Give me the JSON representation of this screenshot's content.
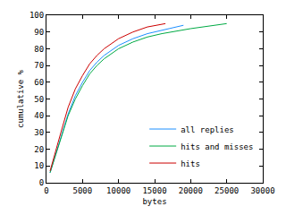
{
  "chart_data": {
    "type": "line",
    "x_label": "bytes",
    "y_label": "cumulative %",
    "xlim": [
      0,
      30000
    ],
    "xticks": [
      0,
      5000,
      10000,
      15000,
      20000,
      25000,
      30000
    ],
    "ylim": [
      0,
      100
    ],
    "yticks": [
      0,
      10,
      20,
      30,
      40,
      50,
      60,
      70,
      80,
      90,
      100
    ],
    "grid": false,
    "legend": "bottom right",
    "series": [
      {
        "name": "all replies",
        "color": "#1e90ff",
        "x": [
          500,
          1000,
          2000,
          3000,
          4000,
          5000,
          6000,
          7000,
          8000,
          10000,
          12000,
          14000,
          17000,
          19000
        ],
        "values": [
          6,
          13,
          28,
          41,
          52,
          60,
          67,
          72,
          76,
          82,
          86,
          89,
          92,
          94
        ]
      },
      {
        "name": "hits and misses",
        "color": "#00aa44",
        "x": [
          500,
          1000,
          2000,
          3000,
          4000,
          5000,
          6000,
          7000,
          8000,
          10000,
          12000,
          14000,
          16000,
          20000,
          25000
        ],
        "values": [
          6,
          13,
          27,
          40,
          50,
          58,
          65,
          70,
          74,
          80,
          84,
          87,
          89,
          92,
          95
        ]
      },
      {
        "name": "hits",
        "color": "#cc0000",
        "x": [
          500,
          1000,
          2000,
          3000,
          4000,
          5000,
          6000,
          7000,
          8000,
          10000,
          12000,
          14000,
          16500
        ],
        "values": [
          7,
          15,
          30,
          45,
          56,
          64,
          71,
          76,
          80,
          86,
          90,
          93,
          95
        ]
      }
    ]
  }
}
